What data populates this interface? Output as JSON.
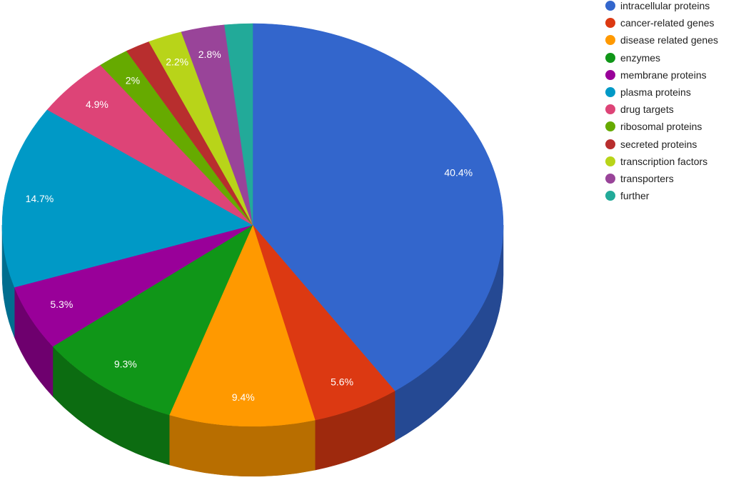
{
  "chart_data": {
    "type": "pie",
    "style": "3d",
    "legend_position": "right",
    "slices": [
      {
        "name": "intracellular proteins",
        "value": 40.4,
        "label": "40.4%",
        "color": "#3366cc"
      },
      {
        "name": "cancer-related genes",
        "value": 5.6,
        "label": "5.6%",
        "color": "#dc3912"
      },
      {
        "name": "disease related genes",
        "value": 9.4,
        "label": "9.4%",
        "color": "#ff9900"
      },
      {
        "name": "enzymes",
        "value": 9.3,
        "label": "9.3%",
        "color": "#109618"
      },
      {
        "name": "membrane proteins",
        "value": 5.3,
        "label": "5.3%",
        "color": "#990099"
      },
      {
        "name": "plasma proteins",
        "value": 14.7,
        "label": "14.7%",
        "color": "#0099c6"
      },
      {
        "name": "drug targets",
        "value": 4.9,
        "label": "4.9%",
        "color": "#dd4477"
      },
      {
        "name": "ribosomal proteins",
        "value": 2.0,
        "label": "2%",
        "color": "#66aa00"
      },
      {
        "name": "secreted proteins",
        "value": 1.6,
        "label": "",
        "color": "#b82e2e"
      },
      {
        "name": "transcription factors",
        "value": 2.2,
        "label": "2.2%",
        "color": "#b8d419"
      },
      {
        "name": "transporters",
        "value": 2.8,
        "label": "2.8%",
        "color": "#994499"
      },
      {
        "name": "further",
        "value": 1.8,
        "label": "",
        "color": "#22aa99"
      }
    ]
  }
}
